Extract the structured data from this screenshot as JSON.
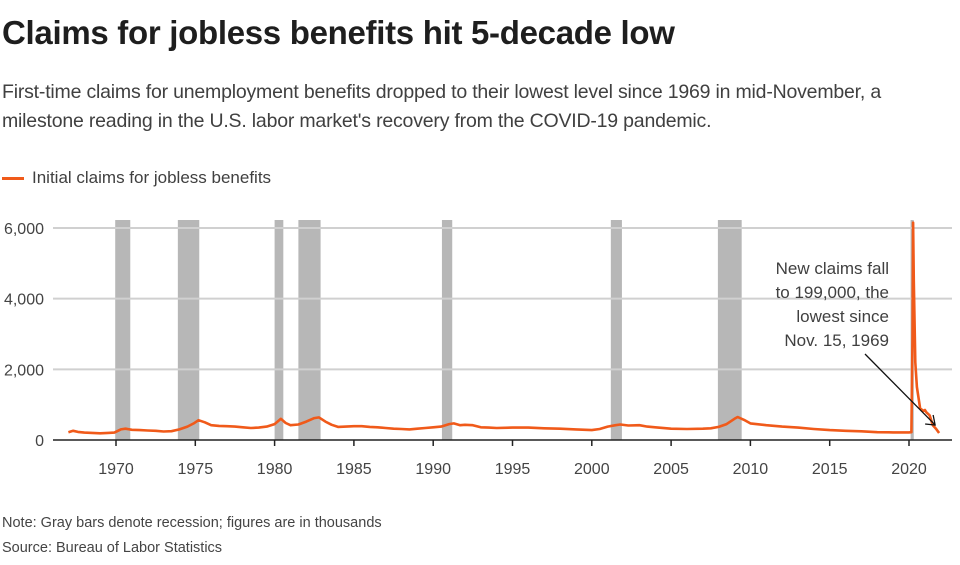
{
  "header": {
    "title": "Claims for jobless benefits hit 5-decade low",
    "subtitle": "First-time claims for unemployment benefits dropped to their lowest level since 1969 in mid-November, a milestone reading in the U.S. labor market's recovery from the COVID-19 pandemic."
  },
  "footer": {
    "note": "Note: Gray bars denote recession; figures are in thousands",
    "source": "Source: Bureau of Labor Statistics"
  },
  "colors": {
    "series": "#f05a1a",
    "recession": "#b7b7b7",
    "grid": "#d0d0d0",
    "axis": "#222222"
  },
  "chart_data": {
    "type": "line",
    "title": "Claims for jobless benefits hit 5-decade low",
    "xlabel": "",
    "ylabel": "",
    "units": "thousands",
    "xlim": [
      1966.7,
      2022.6
    ],
    "ylim": [
      0,
      6000
    ],
    "grid": true,
    "legend_position": "top-left",
    "yticks": [
      0,
      2000,
      4000,
      6000
    ],
    "ytick_labels": [
      "0",
      "2,000",
      "4,000",
      "6,000"
    ],
    "xticks": [
      1970,
      1975,
      1980,
      1985,
      1990,
      1995,
      2000,
      2005,
      2010,
      2015,
      2020
    ],
    "xtick_labels": [
      "1970",
      "1975",
      "1980",
      "1985",
      "1990",
      "1995",
      "2000",
      "2005",
      "2010",
      "2015",
      "2020"
    ],
    "series": [
      {
        "name": "Initial claims for jobless benefits",
        "x": [
          1967.0,
          1967.3,
          1967.6,
          1968.0,
          1968.5,
          1969.0,
          1969.5,
          1969.9,
          1970.3,
          1970.6,
          1971.0,
          1971.5,
          1972.0,
          1972.5,
          1973.0,
          1973.5,
          1974.0,
          1974.5,
          1974.9,
          1975.2,
          1975.6,
          1976.0,
          1976.5,
          1977.0,
          1977.5,
          1978.0,
          1978.5,
          1979.0,
          1979.5,
          1980.0,
          1980.4,
          1980.7,
          1981.0,
          1981.5,
          1982.0,
          1982.5,
          1982.8,
          1983.2,
          1983.6,
          1984.0,
          1984.5,
          1985.0,
          1985.5,
          1986.0,
          1986.5,
          1987.0,
          1987.5,
          1988.0,
          1988.5,
          1989.0,
          1989.5,
          1990.0,
          1990.5,
          1991.0,
          1991.3,
          1991.7,
          1992.0,
          1992.5,
          1993.0,
          1993.5,
          1994.0,
          1995.0,
          1996.0,
          1997.0,
          1998.0,
          1999.0,
          2000.0,
          2000.5,
          2001.0,
          2001.5,
          2001.8,
          2002.3,
          2003.0,
          2003.5,
          2004.0,
          2005.0,
          2006.0,
          2007.0,
          2007.5,
          2008.0,
          2008.5,
          2009.0,
          2009.2,
          2009.6,
          2010.0,
          2011.0,
          2012.0,
          2013.0,
          2014.0,
          2015.0,
          2016.0,
          2017.0,
          2018.0,
          2019.0,
          2020.0,
          2020.15,
          2020.22,
          2020.26,
          2020.3,
          2020.4,
          2020.5,
          2020.7,
          2020.9,
          2021.0,
          2021.1,
          2021.3,
          2021.5,
          2021.7,
          2021.9
        ],
        "values": [
          220,
          260,
          230,
          210,
          200,
          190,
          200,
          210,
          300,
          320,
          290,
          280,
          270,
          260,
          240,
          250,
          300,
          380,
          470,
          560,
          500,
          420,
          400,
          390,
          380,
          360,
          340,
          350,
          380,
          450,
          600,
          480,
          420,
          440,
          520,
          620,
          640,
          520,
          430,
          370,
          380,
          390,
          390,
          370,
          360,
          340,
          320,
          310,
          300,
          320,
          340,
          360,
          380,
          450,
          470,
          420,
          430,
          420,
          360,
          350,
          340,
          350,
          350,
          330,
          320,
          300,
          280,
          310,
          380,
          420,
          440,
          410,
          420,
          380,
          360,
          320,
          310,
          320,
          330,
          370,
          450,
          600,
          650,
          570,
          470,
          420,
          380,
          350,
          310,
          280,
          260,
          245,
          220,
          215,
          215,
          220,
          2900,
          6150,
          4500,
          2200,
          1500,
          900,
          820,
          850,
          780,
          700,
          420,
          320,
          199
        ]
      }
    ],
    "recessions": [
      {
        "start": 1969.95,
        "end": 1970.9
      },
      {
        "start": 1973.9,
        "end": 1975.25
      },
      {
        "start": 1980.0,
        "end": 1980.55
      },
      {
        "start": 1981.5,
        "end": 1982.9
      },
      {
        "start": 1990.55,
        "end": 1991.2
      },
      {
        "start": 2001.2,
        "end": 2001.9
      },
      {
        "start": 2007.95,
        "end": 2009.45
      },
      {
        "start": 2020.1,
        "end": 2020.3
      }
    ],
    "annotation": {
      "lines": [
        "New claims fall",
        "to 199,000, the",
        "lowest since",
        "Nov. 15, 1969"
      ],
      "target": {
        "x": 2021.9,
        "y": 199
      }
    }
  }
}
